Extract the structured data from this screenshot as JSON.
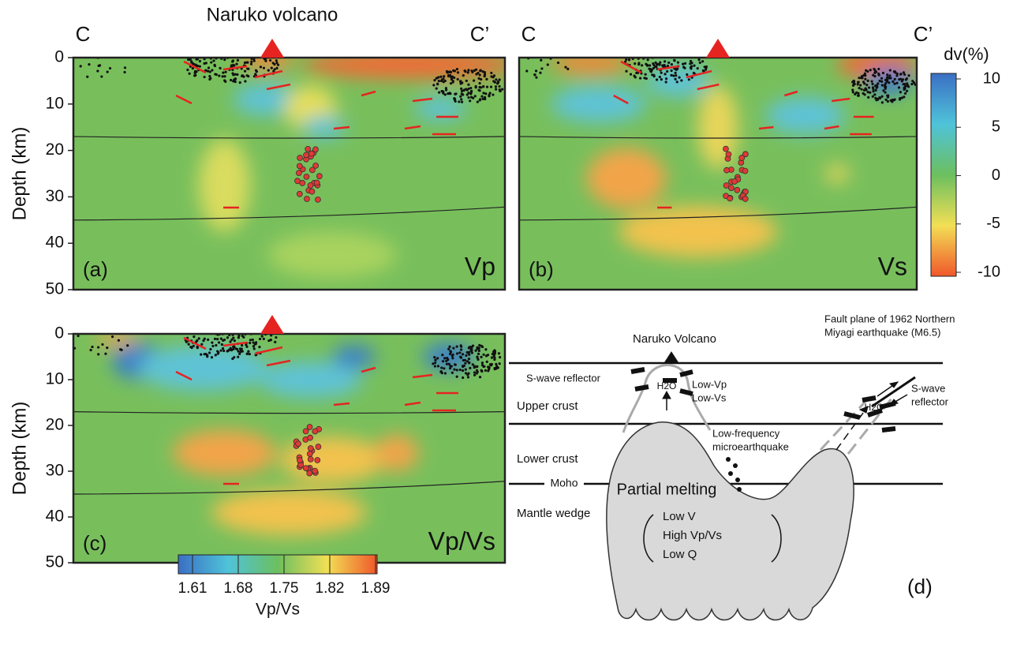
{
  "volcano_title": "Naruko volcano",
  "panels": [
    {
      "label": "(a)",
      "name": "Vp",
      "section_start": "C",
      "section_end": "C’",
      "depth_label": "Depth (km)",
      "depth_ticks": [
        0,
        10,
        20,
        30,
        40,
        50
      ]
    },
    {
      "label": "(b)",
      "name": "Vs",
      "section_start": "C",
      "section_end": "C’"
    },
    {
      "label": "(c)",
      "name": "Vp/Vs",
      "depth_label": "Depth (km)",
      "depth_ticks": [
        0,
        10,
        20,
        30,
        40,
        50
      ]
    }
  ],
  "colorbar_dv": {
    "title": "dv(%)",
    "ticks": [
      10,
      5,
      0,
      -5,
      -10
    ]
  },
  "colorbar_vpvs": {
    "title": "Vp/Vs",
    "ticks": [
      1.61,
      1.68,
      1.75,
      1.82,
      1.89
    ]
  },
  "diagram": {
    "label": "(d)",
    "volcano": "Naruko Volcano",
    "fault_line1": "Fault plane of 1962 Northern",
    "fault_line2": "Miyagi earthquake (M6.5)",
    "s_reflector_left": "S-wave reflector",
    "low_vp": "Low-Vp",
    "low_vs": "Low-Vs",
    "h2o_left": "H2O",
    "h2o_right": "H2O",
    "s_reflector_right1": "S-wave",
    "s_reflector_right2": "reflector",
    "upper_crust": "Upper crust",
    "lfe1": "Low-frequency",
    "lfe2": "microearthquake",
    "lower_crust": "Lower crust",
    "moho": "Moho",
    "partial_melting": "Partial melting",
    "mantle_wedge": "Mantle wedge",
    "props": [
      "Low V",
      "High Vp/Vs",
      "Low Q"
    ]
  }
}
